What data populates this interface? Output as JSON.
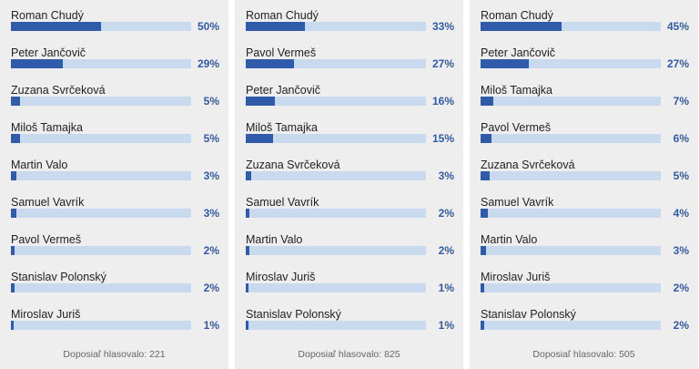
{
  "colors": {
    "bar_fill": "#2f5ba8",
    "bar_track": "#c9d9ee",
    "panel_bg": "#eeeeee",
    "percent_text": "#2f5ba8"
  },
  "chart_data": [
    {
      "type": "bar",
      "categories": [
        "Roman Chudý",
        "Peter Jančovič",
        "Zuzana Svrčeková",
        "Miloš Tamajka",
        "Martin Valo",
        "Samuel Vavrík",
        "Pavol Vermeš",
        "Stanislav Polonský",
        "Miroslav Juriš"
      ],
      "values": [
        50,
        29,
        5,
        5,
        3,
        3,
        2,
        2,
        1
      ],
      "value_labels": [
        "50%",
        "29%",
        "5%",
        "5%",
        "3%",
        "3%",
        "2%",
        "2%",
        "1%"
      ],
      "ylim": [
        0,
        100
      ],
      "footer": "Doposiaľ hlasovalo: 221"
    },
    {
      "type": "bar",
      "categories": [
        "Roman Chudý",
        "Pavol Vermeš",
        "Peter Jančovič",
        "Miloš Tamajka",
        "Zuzana Svrčeková",
        "Samuel Vavrík",
        "Martin Valo",
        "Miroslav Juriš",
        "Stanislav Polonský"
      ],
      "values": [
        33,
        27,
        16,
        15,
        3,
        2,
        2,
        1,
        1
      ],
      "value_labels": [
        "33%",
        "27%",
        "16%",
        "15%",
        "3%",
        "2%",
        "2%",
        "1%",
        "1%"
      ],
      "ylim": [
        0,
        100
      ],
      "footer": "Doposiaľ hlasovalo: 825"
    },
    {
      "type": "bar",
      "categories": [
        "Roman Chudý",
        "Peter Jančovič",
        "Miloš Tamajka",
        "Pavol Vermeš",
        "Zuzana Svrčeková",
        "Samuel Vavrík",
        "Martin Valo",
        "Miroslav Juriš",
        "Stanislav Polonský"
      ],
      "values": [
        45,
        27,
        7,
        6,
        5,
        4,
        3,
        2,
        2
      ],
      "value_labels": [
        "45%",
        "27%",
        "7%",
        "6%",
        "5%",
        "4%",
        "3%",
        "2%",
        "2%"
      ],
      "ylim": [
        0,
        100
      ],
      "footer": "Doposiaľ hlasovalo: 505"
    }
  ]
}
